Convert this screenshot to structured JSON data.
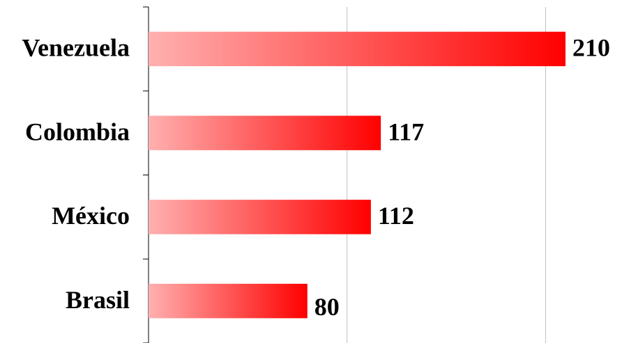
{
  "chart_data": {
    "type": "bar",
    "orientation": "horizontal",
    "categories": [
      "Venezuela",
      "Colombia",
      "México",
      "Brasil"
    ],
    "values": [
      210,
      117,
      112,
      80
    ],
    "color": "#ff0000",
    "gradient_start": "#ffb0b0",
    "xlim": [
      0,
      242
    ],
    "xticks": [
      0,
      100,
      200
    ],
    "grid": true
  }
}
